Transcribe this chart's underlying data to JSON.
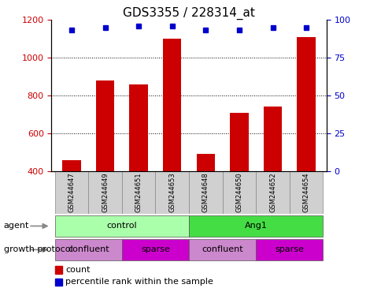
{
  "title": "GDS3355 / 228314_at",
  "samples": [
    "GSM244647",
    "GSM244649",
    "GSM244651",
    "GSM244653",
    "GSM244648",
    "GSM244650",
    "GSM244652",
    "GSM244654"
  ],
  "counts": [
    460,
    880,
    860,
    1100,
    490,
    710,
    740,
    1110
  ],
  "percentile_ranks": [
    93,
    95,
    96,
    96,
    93,
    93,
    95,
    95
  ],
  "ylim_left": [
    400,
    1200
  ],
  "ylim_right": [
    0,
    100
  ],
  "yticks_left": [
    400,
    600,
    800,
    1000,
    1200
  ],
  "yticks_right": [
    0,
    25,
    50,
    75,
    100
  ],
  "bar_color": "#cc0000",
  "dot_color": "#0000cc",
  "agent_labels": [
    {
      "text": "control",
      "start": 0,
      "end": 4,
      "color": "#aaffaa"
    },
    {
      "text": "Ang1",
      "start": 4,
      "end": 8,
      "color": "#44dd44"
    }
  ],
  "growth_labels": [
    {
      "text": "confluent",
      "start": 0,
      "end": 2,
      "color": "#cc88cc"
    },
    {
      "text": "sparse",
      "start": 2,
      "end": 4,
      "color": "#cc00cc"
    },
    {
      "text": "confluent",
      "start": 4,
      "end": 6,
      "color": "#cc88cc"
    },
    {
      "text": "sparse",
      "start": 6,
      "end": 8,
      "color": "#cc00cc"
    }
  ],
  "legend_count_color": "#cc0000",
  "legend_rank_color": "#0000cc",
  "left_tick_color": "#cc0000",
  "right_tick_color": "#0000cc",
  "grid_dotted_at": [
    600,
    800,
    1000
  ],
  "title_fontsize": 11,
  "tick_fontsize": 8,
  "sample_fontsize": 6,
  "label_fontsize": 8,
  "annotation_fontsize": 8
}
